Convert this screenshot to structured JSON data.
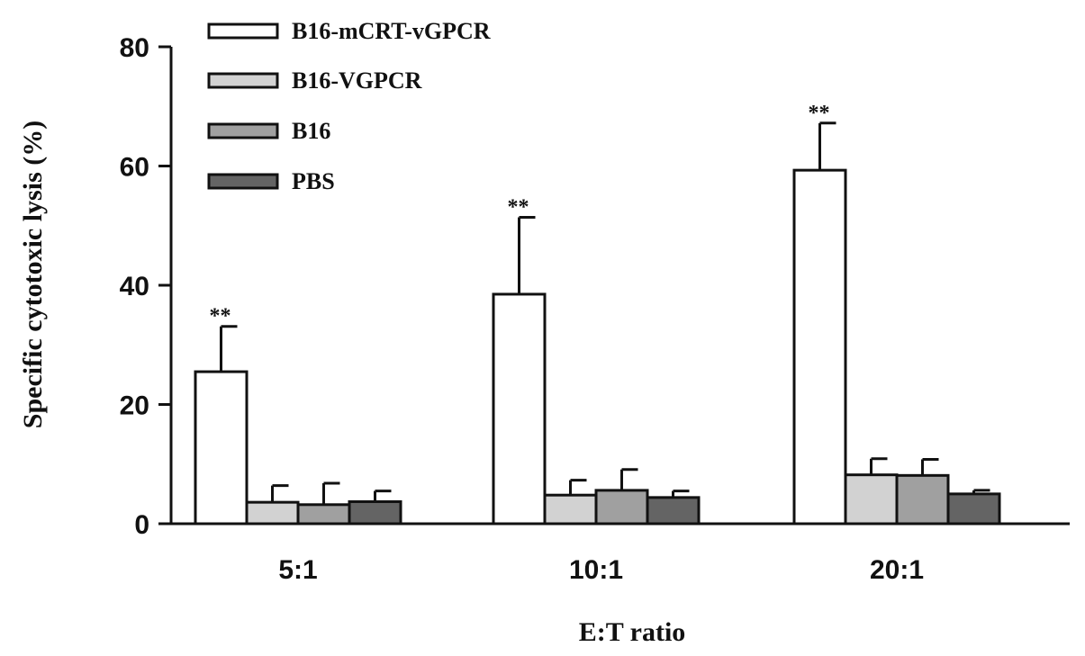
{
  "chart_data": {
    "type": "bar",
    "title": "",
    "xlabel": "E:T ratio",
    "ylabel": "Specific cytotoxic lysis (%)",
    "ylim": [
      0,
      80
    ],
    "yticks": [
      0,
      20,
      40,
      60,
      80
    ],
    "categories": [
      "5:1",
      "10:1",
      "20:1"
    ],
    "series": [
      {
        "name": "B16-mCRT-vGPCR",
        "color": "#ffffff",
        "values": [
          25.5,
          38.5,
          59.3
        ],
        "errors": [
          7.6,
          12.9,
          7.9
        ]
      },
      {
        "name": "B16-VGPCR",
        "color": "#d2d2d2",
        "values": [
          3.6,
          4.8,
          8.2
        ],
        "errors": [
          2.8,
          2.5,
          2.7
        ]
      },
      {
        "name": "B16",
        "color": "#a0a0a0",
        "values": [
          3.2,
          5.6,
          8.1
        ],
        "errors": [
          3.6,
          3.5,
          2.7
        ]
      },
      {
        "name": "PBS",
        "color": "#646464",
        "values": [
          3.7,
          4.4,
          5.0
        ],
        "errors": [
          1.8,
          1.1,
          0.6
        ]
      }
    ],
    "annotations": [
      {
        "category": "5:1",
        "series": "B16-mCRT-vGPCR",
        "text": "**"
      },
      {
        "category": "10:1",
        "series": "B16-mCRT-vGPCR",
        "text": "**"
      },
      {
        "category": "20:1",
        "series": "B16-mCRT-vGPCR",
        "text": "**"
      }
    ],
    "legend_position": "top-left",
    "grid": false
  }
}
